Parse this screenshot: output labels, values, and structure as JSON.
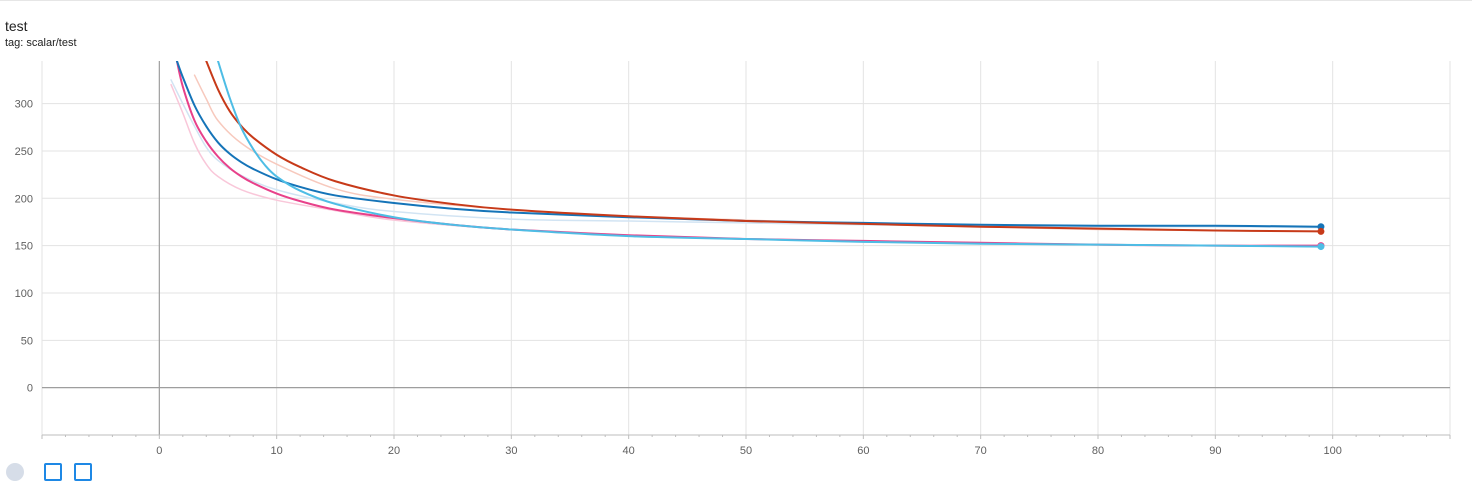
{
  "card": {
    "title": "test",
    "tag": "tag: scalar/test"
  },
  "controls": [
    {
      "icon": "fit-domain-icon"
    },
    {
      "icon": "log-scale-toggle-icon"
    },
    {
      "icon": "expand-chart-icon"
    }
  ],
  "chart_data": {
    "type": "line",
    "title": "test",
    "subtitle": "tag: scalar/test",
    "xlabel": "",
    "ylabel": "",
    "xlim": [
      -10,
      110
    ],
    "ylim": [
      -50,
      345
    ],
    "x_ticks": [
      0,
      10,
      20,
      30,
      40,
      50,
      60,
      70,
      80,
      90,
      100
    ],
    "y_ticks": [
      0,
      50,
      100,
      150,
      200,
      250,
      300
    ],
    "grid": true,
    "legend": "none",
    "series": [
      {
        "color": "#f9c7d9",
        "role": "raw",
        "x": [
          1,
          2,
          3,
          4,
          5,
          7,
          10,
          15,
          20,
          30,
          40,
          50,
          60,
          70,
          80,
          90,
          99
        ],
        "y": [
          320,
          290,
          258,
          236,
          223,
          209,
          198,
          187,
          177,
          167,
          161,
          157,
          154,
          152,
          151,
          150,
          149
        ]
      },
      {
        "color": "#d2e4f3",
        "role": "raw",
        "x": [
          1,
          2,
          3,
          4,
          5,
          7,
          10,
          15,
          20,
          30,
          40,
          50,
          60,
          70,
          80,
          90,
          99
        ],
        "y": [
          325,
          300,
          276,
          254,
          240,
          224,
          209,
          195,
          186,
          178,
          176,
          174,
          172,
          171,
          170,
          170,
          169
        ]
      },
      {
        "color": "#f7c9bd",
        "role": "raw",
        "x": [
          3,
          4,
          5,
          7,
          10,
          15,
          20,
          30,
          40,
          50,
          60,
          70,
          80,
          90,
          99
        ],
        "y": [
          330,
          305,
          282,
          258,
          236,
          210,
          199,
          188,
          181,
          177,
          173,
          170,
          167,
          166,
          165
        ]
      },
      {
        "color": "#e8418a",
        "role": "smoothed",
        "x": [
          1.5,
          2,
          3,
          4,
          5,
          6,
          7,
          8,
          10,
          12,
          15,
          20,
          25,
          30,
          40,
          50,
          60,
          70,
          80,
          90,
          99
        ],
        "y": [
          345,
          318,
          282,
          260,
          244,
          232,
          223,
          216,
          205,
          197,
          188,
          179,
          172,
          167,
          161,
          157,
          155,
          153,
          151,
          150,
          150
        ]
      },
      {
        "color": "#1574b8",
        "role": "smoothed",
        "x": [
          1.5,
          2,
          3,
          4,
          5,
          6,
          7,
          8,
          10,
          12,
          15,
          20,
          25,
          30,
          40,
          50,
          60,
          70,
          80,
          90,
          99
        ],
        "y": [
          345,
          328,
          298,
          276,
          259,
          247,
          238,
          231,
          220,
          212,
          203,
          195,
          189,
          185,
          180,
          176,
          174,
          172,
          171,
          171,
          170
        ]
      },
      {
        "color": "#c73a19",
        "role": "smoothed",
        "x": [
          4,
          5,
          6,
          7,
          8,
          10,
          12,
          15,
          20,
          25,
          30,
          40,
          50,
          60,
          70,
          80,
          90,
          99
        ],
        "y": [
          345,
          315,
          292,
          276,
          264,
          246,
          233,
          218,
          203,
          194,
          188,
          181,
          176,
          173,
          170,
          168,
          166,
          165
        ]
      },
      {
        "color": "#4ebde5",
        "role": "smoothed",
        "x": [
          5,
          6,
          7,
          8,
          9,
          10,
          12,
          15,
          20,
          25,
          30,
          40,
          50,
          60,
          70,
          80,
          90,
          99
        ],
        "y": [
          345,
          306,
          274,
          252,
          235,
          223,
          208,
          194,
          180,
          172,
          167,
          160,
          157,
          154,
          152,
          151,
          150,
          149
        ]
      }
    ],
    "end_markers": [
      {
        "x": 99,
        "y": 170,
        "color": "#1574b8"
      },
      {
        "x": 99,
        "y": 165,
        "color": "#c73a19"
      },
      {
        "x": 99,
        "y": 150,
        "color": "#e8418a"
      },
      {
        "x": 99,
        "y": 149,
        "color": "#4ebde5"
      }
    ]
  }
}
